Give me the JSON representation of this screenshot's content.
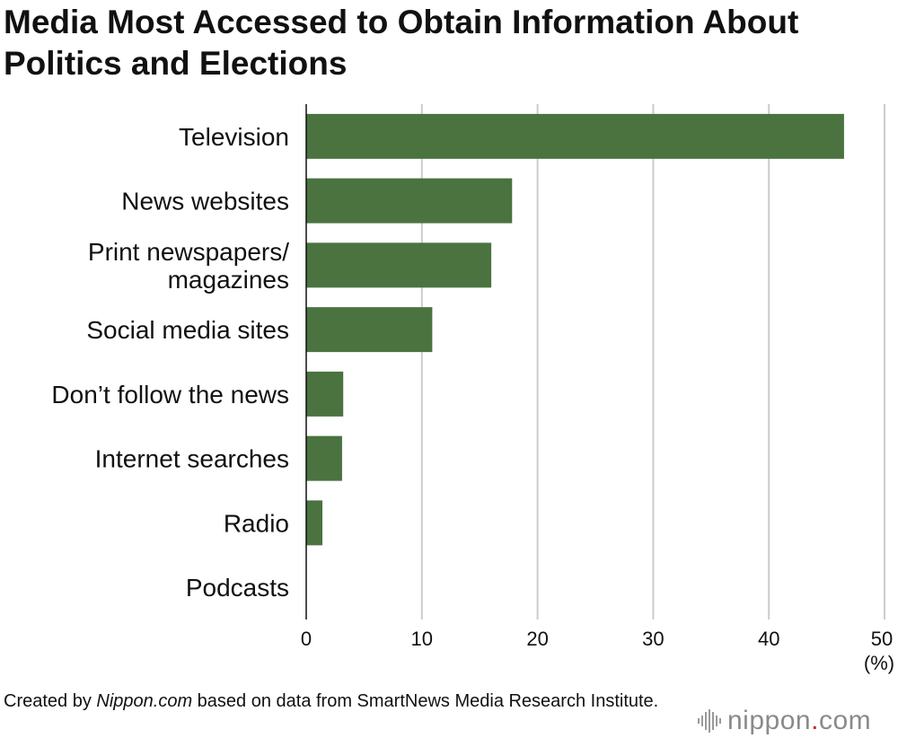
{
  "chart_data": {
    "type": "bar",
    "orientation": "horizontal",
    "title": "Media Most Accessed to Obtain Information About Politics and Elections",
    "categories": [
      [
        "Television"
      ],
      [
        "News websites"
      ],
      [
        "Print newspapers/",
        "magazines"
      ],
      [
        "Social media sites"
      ],
      [
        "Don’t follow the news"
      ],
      [
        "Internet searches"
      ],
      [
        "Radio"
      ],
      [
        "Podcasts"
      ]
    ],
    "values": [
      46.5,
      17.8,
      16.0,
      10.9,
      3.2,
      3.1,
      1.4,
      0.0
    ],
    "xlim": [
      0,
      50
    ],
    "xticks": [
      "0",
      "10",
      "20",
      "30",
      "40",
      "50"
    ],
    "xunit": "(%)",
    "grid": true,
    "bar_color": "#4a7340"
  },
  "footer": {
    "prefix": "Created by ",
    "source_name": "Nippon.com",
    "suffix": " based on data from SmartNews Media Research Institute."
  },
  "logo": {
    "text_main": "nippon",
    "text_dot": ".",
    "text_tld": "com"
  }
}
